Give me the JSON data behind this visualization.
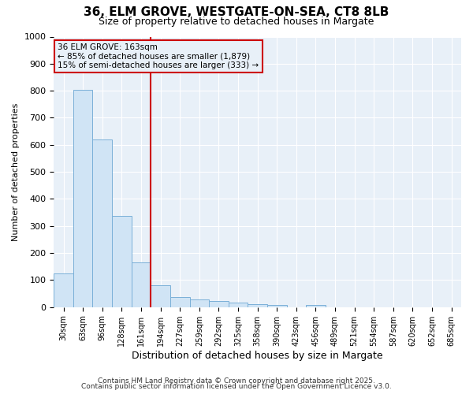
{
  "title": "36, ELM GROVE, WESTGATE-ON-SEA, CT8 8LB",
  "subtitle": "Size of property relative to detached houses in Margate",
  "xlabel": "Distribution of detached houses by size in Margate",
  "ylabel": "Number of detached properties",
  "bar_labels": [
    "30sqm",
    "63sqm",
    "96sqm",
    "128sqm",
    "161sqm",
    "194sqm",
    "227sqm",
    "259sqm",
    "292sqm",
    "325sqm",
    "358sqm",
    "390sqm",
    "423sqm",
    "456sqm",
    "489sqm",
    "521sqm",
    "554sqm",
    "587sqm",
    "620sqm",
    "652sqm",
    "685sqm"
  ],
  "bar_values": [
    125,
    803,
    620,
    338,
    165,
    82,
    38,
    28,
    22,
    18,
    12,
    8,
    0,
    8,
    0,
    0,
    0,
    0,
    0,
    0,
    0
  ],
  "bar_color": "#d0e4f5",
  "bar_edge_color": "#7ab0d8",
  "red_line_x": 4.5,
  "red_line_color": "#cc0000",
  "annotation_text_line1": "36 ELM GROVE: 163sqm",
  "annotation_text_line2": "← 85% of detached houses are smaller (1,879)",
  "annotation_text_line3": "15% of semi-detached houses are larger (333) →",
  "annotation_color": "#cc0000",
  "ylim": [
    0,
    1000
  ],
  "yticks": [
    0,
    100,
    200,
    300,
    400,
    500,
    600,
    700,
    800,
    900,
    1000
  ],
  "bg_color": "#ffffff",
  "plot_bg_color": "#e8f0f8",
  "grid_color": "#ffffff",
  "footer1": "Contains HM Land Registry data © Crown copyright and database right 2025.",
  "footer2": "Contains public sector information licensed under the Open Government Licence v3.0."
}
